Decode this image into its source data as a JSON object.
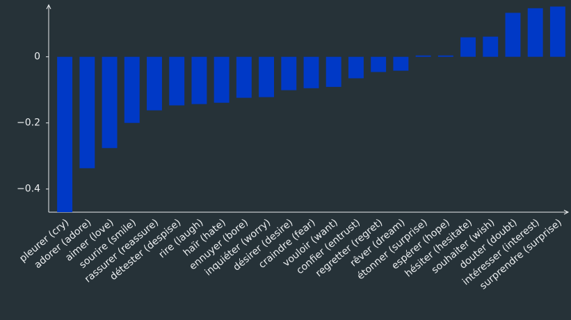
{
  "chart_data": {
    "type": "bar",
    "categories": [
      "pleurer (cry)",
      "adorer (adore)",
      "aimer (love)",
      "sourire (smile)",
      "rassurer (reassure)",
      "détester (despise)",
      "rire (laugh)",
      "haïr (hate)",
      "ennuyer (bore)",
      "inquiéter (worry)",
      "désirer (desire)",
      "craindre (fear)",
      "vouloir (want)",
      "confier (entrust)",
      "regretter (regret)",
      "rêver (dream)",
      "étonner (surprise)",
      "espérer (hope)",
      "hésiter (hesitate)",
      "souhaiter (wish)",
      "douter (doubt)",
      "intéresser (interest)",
      "surprendre (surprise)"
    ],
    "values": [
      -0.47,
      -0.337,
      -0.276,
      -0.2,
      -0.162,
      -0.147,
      -0.143,
      -0.139,
      -0.124,
      -0.122,
      -0.101,
      -0.095,
      -0.091,
      -0.065,
      -0.046,
      -0.042,
      0.004,
      0.004,
      0.059,
      0.061,
      0.133,
      0.147,
      0.152
    ],
    "color": "#0039c6",
    "ylim": [
      -0.47,
      0.155
    ],
    "yticks": [
      {
        "value": -0.4,
        "label": "−0.4"
      },
      {
        "value": -0.2,
        "label": "−0.2"
      },
      0
    ],
    "grid": false
  }
}
